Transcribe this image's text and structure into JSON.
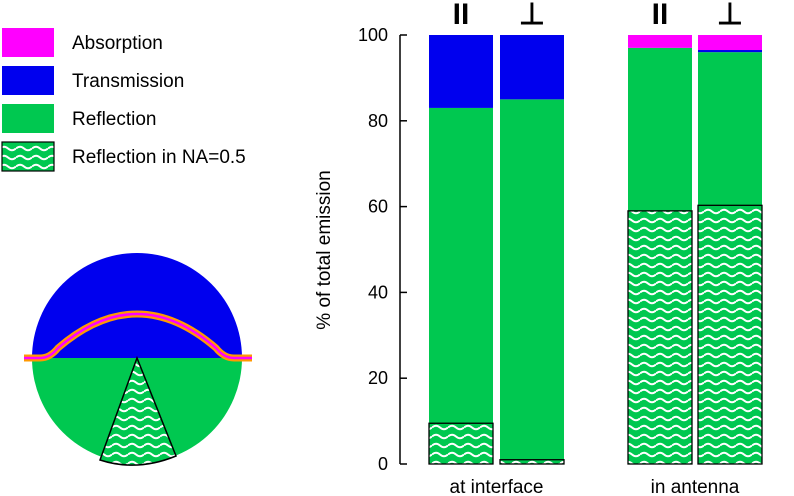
{
  "legend": {
    "items": [
      {
        "key": "absorption",
        "label": "Absorption",
        "color": "#ff00ff",
        "pattern": false
      },
      {
        "key": "transmission",
        "label": "Transmission",
        "color": "#0000ee",
        "pattern": false
      },
      {
        "key": "reflection",
        "label": "Reflection",
        "color": "#00c850",
        "pattern": false
      },
      {
        "key": "reflection_na",
        "label": "Reflection in NA=0.5",
        "color": "#00c850",
        "pattern": true
      }
    ]
  },
  "chart_data": {
    "type": "bar",
    "stacked": true,
    "ylabel": "% of total emission",
    "ylim": [
      0,
      100
    ],
    "yticks": [
      0,
      20,
      40,
      60,
      80,
      100
    ],
    "groups": [
      {
        "label": "at interface",
        "bars": [
          {
            "polarization": "II",
            "reflection_na": 9.5,
            "reflection": 83,
            "transmission": 100,
            "absorption": 100
          },
          {
            "polarization": "⊥",
            "reflection_na": 1,
            "reflection": 85,
            "transmission": 100,
            "absorption": 100
          }
        ]
      },
      {
        "label": "in antenna",
        "bars": [
          {
            "polarization": "II",
            "reflection_na": 59,
            "reflection": 97,
            "transmission": 97,
            "absorption": 100
          },
          {
            "polarization": "⊥",
            "reflection_na": 60.3,
            "reflection": 96,
            "transmission": 96.5,
            "absorption": 100
          }
        ]
      }
    ],
    "colors": {
      "absorption": "#ff00ff",
      "transmission": "#0000ee",
      "reflection": "#00c850",
      "antenna_outline": "#ff9900"
    }
  }
}
